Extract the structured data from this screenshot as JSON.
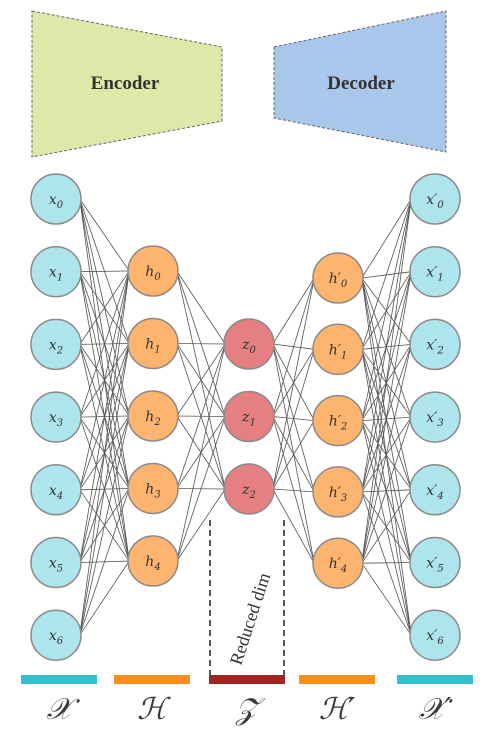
{
  "blocks": {
    "encoder": {
      "label": "Encoder",
      "color": "#dde9a8"
    },
    "decoder": {
      "label": "Decoder",
      "color": "#a9c6eb"
    }
  },
  "layers": [
    {
      "id": "x",
      "label": "𝒳",
      "color": "#aee4ec",
      "bar_color": "#35c0cf",
      "nodes": [
        {
          "base": "x",
          "sub": "0"
        },
        {
          "base": "x",
          "sub": "1"
        },
        {
          "base": "x",
          "sub": "2"
        },
        {
          "base": "x",
          "sub": "3"
        },
        {
          "base": "x",
          "sub": "4"
        },
        {
          "base": "x",
          "sub": "5"
        },
        {
          "base": "x",
          "sub": "6"
        }
      ]
    },
    {
      "id": "h",
      "label": "ℋ",
      "color": "#fdb46e",
      "bar_color": "#fb8c18",
      "nodes": [
        {
          "base": "h",
          "sub": "0"
        },
        {
          "base": "h",
          "sub": "1"
        },
        {
          "base": "h",
          "sub": "2"
        },
        {
          "base": "h",
          "sub": "3"
        },
        {
          "base": "h",
          "sub": "4"
        }
      ]
    },
    {
      "id": "z",
      "label": "𝒵",
      "color": "#e57f82",
      "bar_color": "#a2231f",
      "nodes": [
        {
          "base": "z",
          "sub": "0"
        },
        {
          "base": "z",
          "sub": "1"
        },
        {
          "base": "z",
          "sub": "2"
        }
      ]
    },
    {
      "id": "h_prime",
      "label": "ℋ′",
      "color": "#fdb46e",
      "bar_color": "#fb8c18",
      "nodes": [
        {
          "base": "h′",
          "sub": "0"
        },
        {
          "base": "h′",
          "sub": "1"
        },
        {
          "base": "h′",
          "sub": "2"
        },
        {
          "base": "h′",
          "sub": "3"
        },
        {
          "base": "h′",
          "sub": "4"
        }
      ]
    },
    {
      "id": "x_prime",
      "label": "𝒳′",
      "color": "#aee4ec",
      "bar_color": "#35c0cf",
      "nodes": [
        {
          "base": "x′",
          "sub": "0"
        },
        {
          "base": "x′",
          "sub": "1"
        },
        {
          "base": "x′",
          "sub": "2"
        },
        {
          "base": "x′",
          "sub": "3"
        },
        {
          "base": "x′",
          "sub": "4"
        },
        {
          "base": "x′",
          "sub": "5"
        },
        {
          "base": "x′",
          "sub": "6"
        }
      ]
    }
  ],
  "annotation": {
    "reduced_dim": "Reduced dim"
  }
}
